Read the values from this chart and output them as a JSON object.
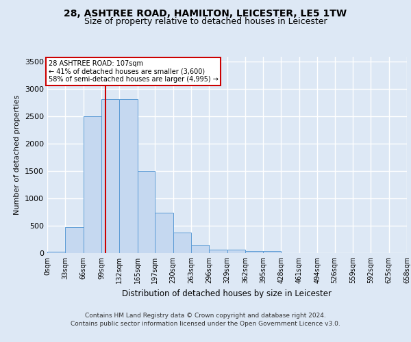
{
  "title_line1": "28, ASHTREE ROAD, HAMILTON, LEICESTER, LE5 1TW",
  "title_line2": "Size of property relative to detached houses in Leicester",
  "xlabel": "Distribution of detached houses by size in Leicester",
  "ylabel": "Number of detached properties",
  "footnote1": "Contains HM Land Registry data © Crown copyright and database right 2024.",
  "footnote2": "Contains public sector information licensed under the Open Government Licence v3.0.",
  "bar_edges": [
    0,
    33,
    66,
    99,
    132,
    165,
    197,
    230,
    263,
    296,
    329,
    362,
    395,
    428,
    461,
    494,
    526,
    559,
    592,
    625,
    658
  ],
  "bar_heights": [
    20,
    470,
    2500,
    2820,
    2820,
    1500,
    740,
    380,
    155,
    65,
    65,
    40,
    40,
    0,
    0,
    0,
    0,
    0,
    0,
    0
  ],
  "bar_color": "#c5d8f0",
  "bar_edgecolor": "#5b9bd5",
  "background_color": "#dde8f5",
  "grid_color": "#ffffff",
  "property_sqm": 107,
  "annotation_text": "28 ASHTREE ROAD: 107sqm\n← 41% of detached houses are smaller (3,600)\n58% of semi-detached houses are larger (4,995) →",
  "annotation_box_edgecolor": "#cc0000",
  "annotation_box_facecolor": "#ffffff",
  "vline_color": "#cc0000",
  "ylim": [
    0,
    3600
  ],
  "yticks": [
    0,
    500,
    1000,
    1500,
    2000,
    2500,
    3000,
    3500
  ],
  "tick_labels": [
    "0sqm",
    "33sqm",
    "66sqm",
    "99sqm",
    "132sqm",
    "165sqm",
    "197sqm",
    "230sqm",
    "263sqm",
    "296sqm",
    "329sqm",
    "362sqm",
    "395sqm",
    "428sqm",
    "461sqm",
    "494sqm",
    "526sqm",
    "559sqm",
    "592sqm",
    "625sqm",
    "658sqm"
  ]
}
